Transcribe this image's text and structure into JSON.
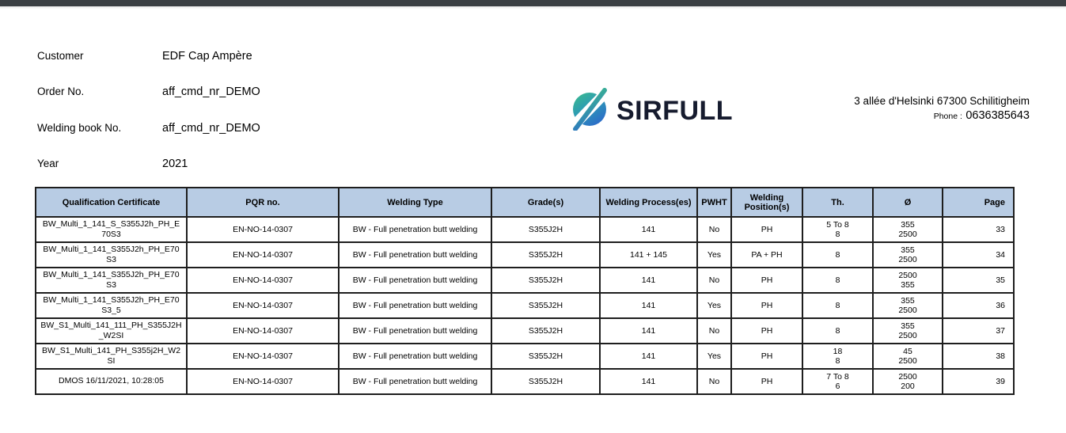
{
  "info": {
    "fields": [
      {
        "label": "Customer",
        "value": "EDF Cap Ampère"
      },
      {
        "label": "Order No.",
        "value": "aff_cmd_nr_DEMO"
      },
      {
        "label": "Welding book No.",
        "value": "aff_cmd_nr_DEMO"
      },
      {
        "label": "Year",
        "value": "2021"
      }
    ]
  },
  "brand": {
    "name": "SIRFULL",
    "icon": "sirfull-slash-circle-icon",
    "gradient_start": "#38b78e",
    "gradient_end": "#2c6cc9",
    "text_color": "#161b2e"
  },
  "contact": {
    "address": "3 allée d'Helsinki 67300 Schilitigheim",
    "phone_label": "Phone :",
    "phone_number": "0636385643"
  },
  "table": {
    "header_bg": "#b8cce4",
    "headers": [
      "Qualification Certificate",
      "PQR no.",
      "Welding Type",
      "Grade(s)",
      "Welding Process(es)",
      "PWHT",
      "Welding Position(s)",
      "Th.",
      "Ø",
      "Page"
    ],
    "rows": [
      {
        "certificate": "BW_Multi_1_141_S_S355J2h_PH_E70S3",
        "pqr": "EN-NO-14-0307",
        "welding_type": "BW - Full penetration butt welding",
        "grades": "S355J2H",
        "processes": "141",
        "pwht": "No",
        "positions": "PH",
        "thickness": "5 To 8\n8",
        "diameter": "355\n2500",
        "page": "33"
      },
      {
        "certificate": "BW_Multi_1_141_S355J2h_PH_E70S3",
        "pqr": "EN-NO-14-0307",
        "welding_type": "BW - Full penetration butt welding",
        "grades": "S355J2H",
        "processes": "141 + 145",
        "pwht": "Yes",
        "positions": "PA + PH",
        "thickness": "8",
        "diameter": "355\n2500",
        "page": "34"
      },
      {
        "certificate": "BW_Multi_1_141_S355J2h_PH_E70S3",
        "pqr": "EN-NO-14-0307",
        "welding_type": "BW - Full penetration butt welding",
        "grades": "S355J2H",
        "processes": "141",
        "pwht": "No",
        "positions": "PH",
        "thickness": "8",
        "diameter": "2500\n355",
        "page": "35"
      },
      {
        "certificate": "BW_Multi_1_141_S355J2h_PH_E70S3_5",
        "pqr": "EN-NO-14-0307",
        "welding_type": "BW - Full penetration butt welding",
        "grades": "S355J2H",
        "processes": "141",
        "pwht": "Yes",
        "positions": "PH",
        "thickness": "8",
        "diameter": "355\n2500",
        "page": "36"
      },
      {
        "certificate": "BW_S1_Multi_141_111_PH_S355J2H_W2SI",
        "pqr": "EN-NO-14-0307",
        "welding_type": "BW - Full penetration butt welding",
        "grades": "S355J2H",
        "processes": "141",
        "pwht": "No",
        "positions": "PH",
        "thickness": "8",
        "diameter": "355\n2500",
        "page": "37"
      },
      {
        "certificate": "BW_S1_Multi_141_PH_S355j2H_W2SI",
        "pqr": "EN-NO-14-0307",
        "welding_type": "BW - Full penetration butt welding",
        "grades": "S355J2H",
        "processes": "141",
        "pwht": "Yes",
        "positions": "PH",
        "thickness": "18\n8",
        "diameter": "45\n2500",
        "page": "38"
      },
      {
        "certificate": "DMOS 16/11/2021, 10:28:05",
        "pqr": "EN-NO-14-0307",
        "welding_type": "BW - Full penetration butt welding",
        "grades": "S355J2H",
        "processes": "141",
        "pwht": "No",
        "positions": "PH",
        "thickness": "7 To 8\n6",
        "diameter": "2500\n200",
        "page": "39"
      }
    ]
  }
}
